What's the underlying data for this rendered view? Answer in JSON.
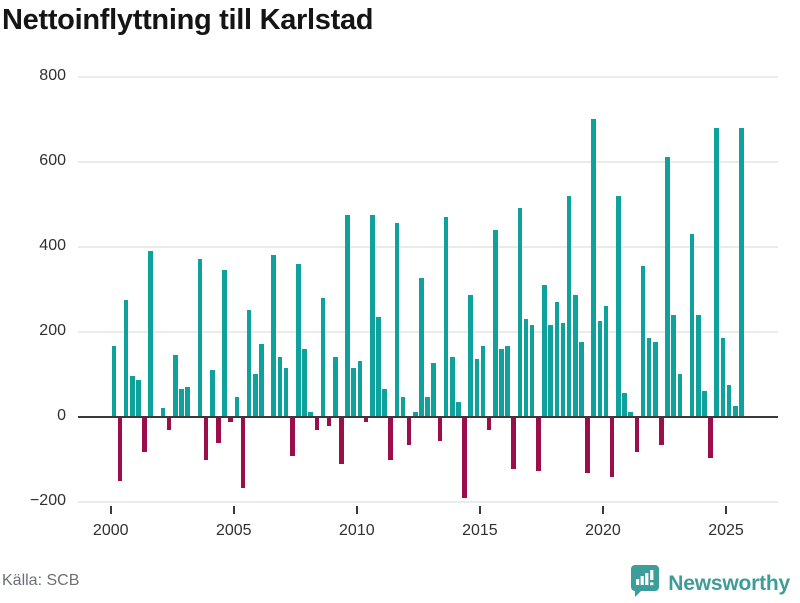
{
  "title": "Nettoinflyttning till Karlstad",
  "source": "Källa: SCB",
  "branding": {
    "name": "Newsworthy",
    "icon": "newsworthy-bar-chart-badge",
    "badge_color": "#3d9d9a",
    "text_color": "#3e9d99"
  },
  "colors": {
    "positive_bar": "#0fa29d",
    "negative_bar": "#9b0d4b",
    "axis_line": "#3a3a3a",
    "gridline": "#ebebeb",
    "axis_text": "#303030",
    "source_text": "#6b7076"
  },
  "y_axis": {
    "tick_labels": [
      "800",
      "600",
      "400",
      "200",
      "0",
      "−200"
    ],
    "tick_values": [
      800,
      600,
      400,
      200,
      0,
      -200
    ]
  },
  "x_axis": {
    "tick_labels": [
      "2000",
      "2005",
      "2010",
      "2015",
      "2020",
      "2025"
    ]
  },
  "chart_data": {
    "type": "bar",
    "title": "Nettoinflyttning till Karlstad",
    "xlabel": "",
    "ylabel": "",
    "ylim": [
      -200,
      800
    ],
    "yticks": [
      800,
      600,
      400,
      200,
      0,
      -200
    ],
    "grid": true,
    "legend": false,
    "positive_color": "#0fa29d",
    "negative_color": "#9b0d4b",
    "x": [
      "2000Q1",
      "2000Q2",
      "2000Q3",
      "2000Q4",
      "2001Q1",
      "2001Q2",
      "2001Q3",
      "2001Q4",
      "2002Q1",
      "2002Q2",
      "2002Q3",
      "2002Q4",
      "2003Q1",
      "2003Q2",
      "2003Q3",
      "2003Q4",
      "2004Q1",
      "2004Q2",
      "2004Q3",
      "2004Q4",
      "2005Q1",
      "2005Q2",
      "2005Q3",
      "2005Q4",
      "2006Q1",
      "2006Q2",
      "2006Q3",
      "2006Q4",
      "2007Q1",
      "2007Q2",
      "2007Q3",
      "2007Q4",
      "2008Q1",
      "2008Q2",
      "2008Q3",
      "2008Q4",
      "2009Q1",
      "2009Q2",
      "2009Q3",
      "2009Q4",
      "2010Q1",
      "2010Q2",
      "2010Q3",
      "2010Q4",
      "2011Q1",
      "2011Q2",
      "2011Q3",
      "2011Q4",
      "2012Q1",
      "2012Q2",
      "2012Q3",
      "2012Q4",
      "2013Q1",
      "2013Q2",
      "2013Q3",
      "2013Q4",
      "2014Q1",
      "2014Q2",
      "2014Q3",
      "2014Q4",
      "2015Q1",
      "2015Q2",
      "2015Q3",
      "2015Q4",
      "2016Q1",
      "2016Q2",
      "2016Q3",
      "2016Q4",
      "2017Q1",
      "2017Q2",
      "2017Q3",
      "2017Q4",
      "2018Q1",
      "2018Q2",
      "2018Q3",
      "2018Q4",
      "2019Q1",
      "2019Q2",
      "2019Q3",
      "2019Q4",
      "2020Q1",
      "2020Q2",
      "2020Q3",
      "2020Q4",
      "2021Q1",
      "2021Q2",
      "2021Q3",
      "2021Q4",
      "2022Q1",
      "2022Q2",
      "2022Q3",
      "2022Q4",
      "2023Q1",
      "2023Q2",
      "2023Q3",
      "2023Q4",
      "2024Q1",
      "2024Q2",
      "2024Q3",
      "2024Q4",
      "2025Q1",
      "2025Q2",
      "2025Q3"
    ],
    "values": [
      165,
      -150,
      275,
      95,
      85,
      -80,
      390,
      0,
      20,
      -30,
      145,
      65,
      70,
      0,
      370,
      -100,
      110,
      -60,
      345,
      -10,
      45,
      -165,
      250,
      100,
      170,
      0,
      380,
      140,
      115,
      -90,
      360,
      160,
      10,
      -30,
      280,
      -20,
      140,
      -110,
      475,
      115,
      130,
      -10,
      475,
      235,
      65,
      -100,
      455,
      45,
      -65,
      10,
      325,
      45,
      125,
      -55,
      470,
      140,
      35,
      -190,
      285,
      135,
      165,
      -30,
      440,
      160,
      165,
      -120,
      490,
      230,
      215,
      -125,
      310,
      215,
      270,
      220,
      520,
      285,
      175,
      -130,
      700,
      225,
      260,
      -140,
      520,
      55,
      10,
      -80,
      355,
      185,
      175,
      -65,
      610,
      240,
      100,
      0,
      430,
      240,
      60,
      -95,
      680,
      185,
      75,
      25,
      680
    ]
  }
}
